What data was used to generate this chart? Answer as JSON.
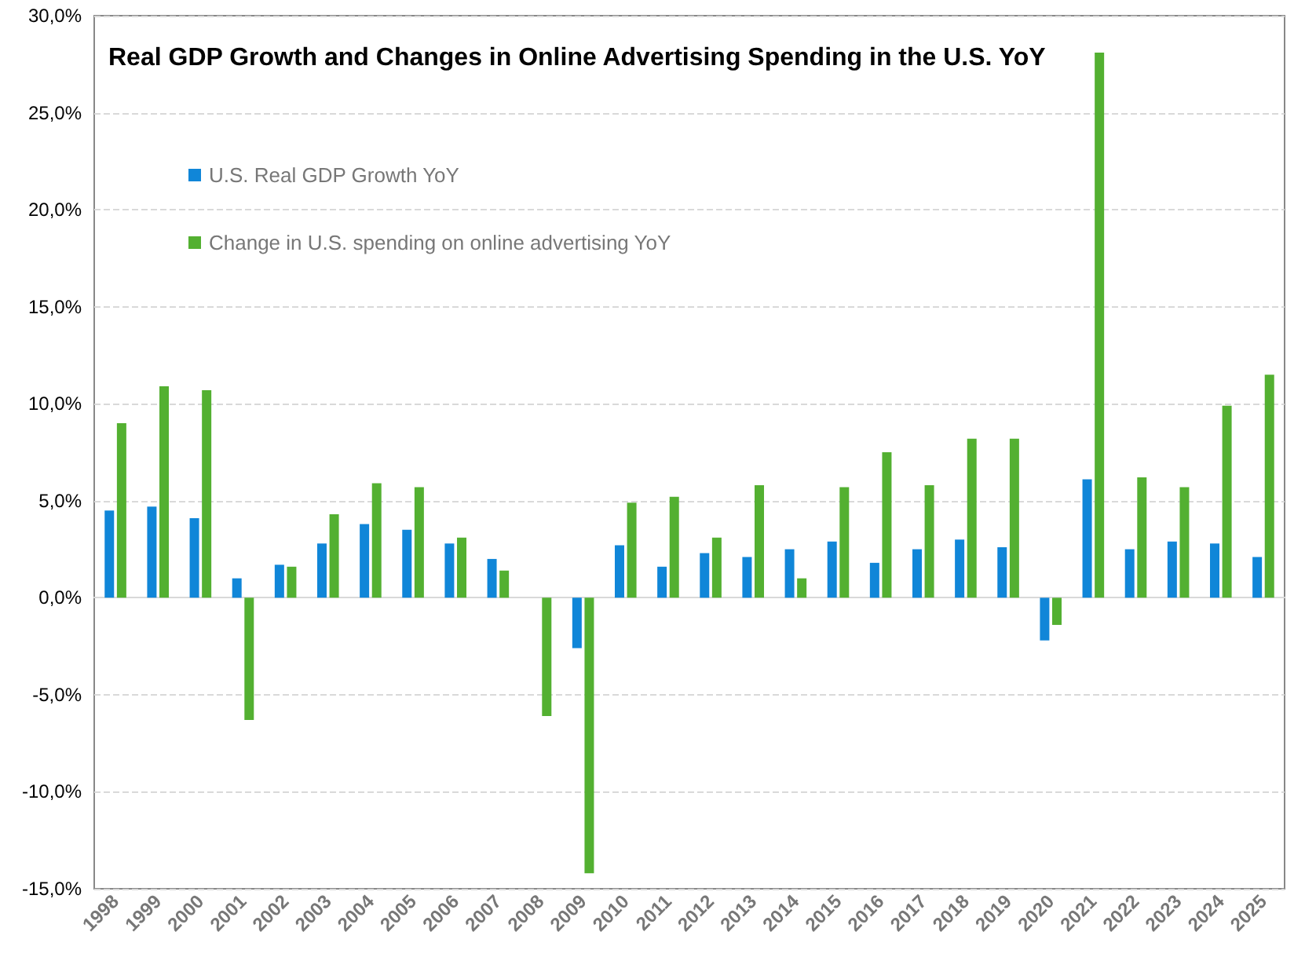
{
  "chart_data": {
    "type": "bar",
    "title": "Real GDP Growth and Changes in Online Advertising Spending in the U.S. YoY",
    "categories": [
      "1998",
      "1999",
      "2000",
      "2001",
      "2002",
      "2003",
      "2004",
      "2005",
      "2006",
      "2007",
      "2008",
      "2009",
      "2010",
      "2011",
      "2012",
      "2013",
      "2014",
      "2015",
      "2016",
      "2017",
      "2018",
      "2019",
      "2020",
      "2021",
      "2022",
      "2023",
      "2024",
      "2025"
    ],
    "series": [
      {
        "name": "U.S. Real GDP Growth YoY",
        "color": "#1086d8",
        "values": [
          4.5,
          4.7,
          4.1,
          1.0,
          1.7,
          2.8,
          3.8,
          3.5,
          2.8,
          2.0,
          0.0,
          -2.6,
          2.7,
          1.6,
          2.3,
          2.1,
          2.5,
          2.9,
          1.8,
          2.5,
          3.0,
          2.6,
          -2.2,
          6.1,
          2.5,
          2.9,
          2.8,
          2.1
        ]
      },
      {
        "name": "Change in U.S. spending on online advertising YoY",
        "color": "#53b031",
        "values": [
          9.0,
          10.9,
          10.7,
          -6.3,
          1.6,
          4.3,
          5.9,
          5.7,
          3.1,
          1.4,
          -6.1,
          -14.2,
          4.9,
          5.2,
          3.1,
          5.8,
          1.0,
          5.7,
          7.5,
          5.8,
          8.2,
          8.2,
          -1.4,
          28.1,
          6.2,
          5.7,
          9.9,
          11.5
        ]
      }
    ],
    "ylim": [
      -15,
      30
    ],
    "yticks": [
      {
        "value": -15,
        "label": "-15,0%"
      },
      {
        "value": -10,
        "label": "-10,0%"
      },
      {
        "value": -5,
        "label": "-5,0%"
      },
      {
        "value": 0,
        "label": "0,0%"
      },
      {
        "value": 5,
        "label": "5,0%"
      },
      {
        "value": 10,
        "label": "10,0%"
      },
      {
        "value": 15,
        "label": "15,0%"
      },
      {
        "value": 20,
        "label": "20,0%"
      },
      {
        "value": 25,
        "label": "25,0%"
      },
      {
        "value": 30,
        "label": "30,0%"
      }
    ],
    "grid": "y",
    "legend": "top left"
  }
}
